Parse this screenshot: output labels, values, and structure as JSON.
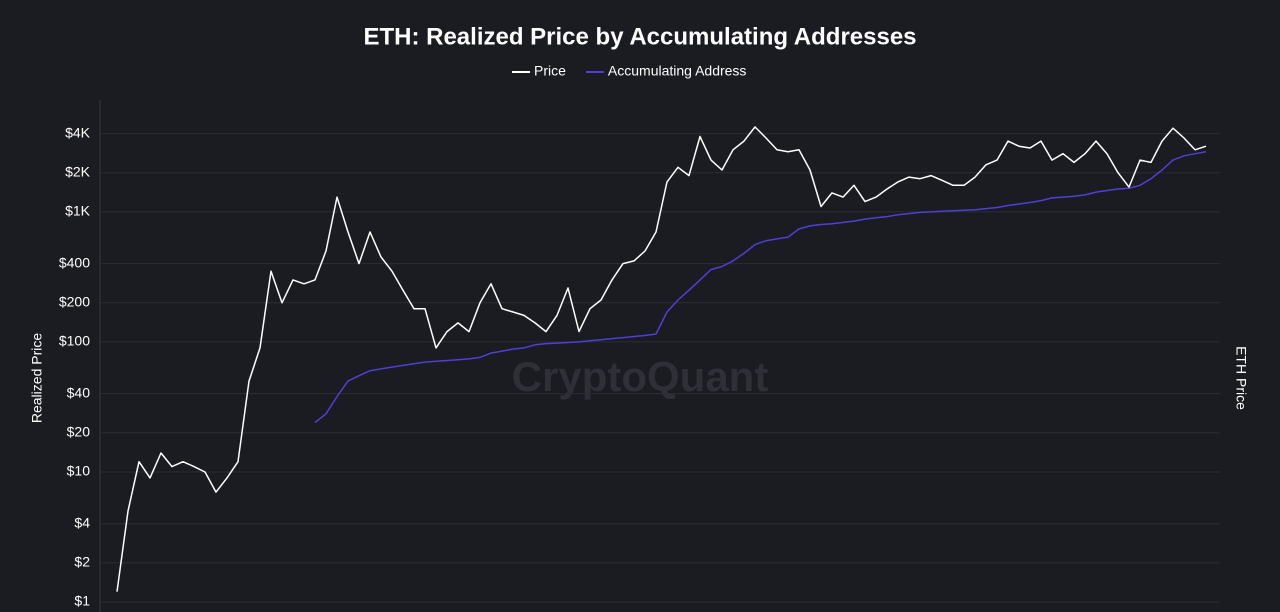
{
  "chart_data": {
    "type": "line",
    "title": "ETH: Realized Price by Accumulating Addresses",
    "y_label": "Realized Price",
    "y2_label": "ETH Price",
    "watermark": "CryptoQuant",
    "log_scale": true,
    "grid": true,
    "ylim": [
      1,
      7250
    ],
    "yticks": [
      {
        "value": 1,
        "label": "$1"
      },
      {
        "value": 2,
        "label": "$2"
      },
      {
        "value": 4,
        "label": "$4"
      },
      {
        "value": 10,
        "label": "$10"
      },
      {
        "value": 20,
        "label": "$20"
      },
      {
        "value": 40,
        "label": "$40"
      },
      {
        "value": 100,
        "label": "$100"
      },
      {
        "value": 200,
        "label": "$200"
      },
      {
        "value": 400,
        "label": "$400"
      },
      {
        "value": 1000,
        "label": "$1K"
      },
      {
        "value": 2000,
        "label": "$2K"
      },
      {
        "value": 4000,
        "label": "$4K"
      }
    ],
    "series": [
      {
        "name": "Price",
        "color": "#ffffff",
        "values": [
          1.2,
          5,
          12,
          9,
          14,
          11,
          12,
          11,
          10,
          7,
          9,
          12,
          50,
          90,
          350,
          200,
          300,
          280,
          300,
          500,
          1300,
          700,
          400,
          700,
          450,
          350,
          250,
          180,
          180,
          90,
          120,
          140,
          120,
          200,
          280,
          180,
          170,
          160,
          140,
          120,
          160,
          260,
          120,
          180,
          210,
          300,
          400,
          420,
          500,
          700,
          1700,
          2200,
          1900,
          3800,
          2500,
          2100,
          3000,
          3500,
          4500,
          3700,
          3000,
          2900,
          3000,
          2100,
          1100,
          1400,
          1300,
          1600,
          1200,
          1300,
          1500,
          1700,
          1850,
          1800,
          1900,
          1750,
          1600,
          1600,
          1850,
          2300,
          2500,
          3500,
          3200,
          3100,
          3500,
          2500,
          2800,
          2400,
          2800,
          3500,
          2800,
          2000,
          1550,
          2500,
          2400,
          3500,
          4400,
          3700,
          3000,
          3200
        ]
      },
      {
        "name": "Accumulating Address",
        "color": "#4f3fd6",
        "values": [
          null,
          null,
          null,
          null,
          null,
          null,
          null,
          null,
          null,
          null,
          null,
          null,
          null,
          null,
          null,
          null,
          null,
          null,
          24,
          28,
          38,
          50,
          55,
          60,
          62,
          64,
          66,
          68,
          70,
          71,
          72,
          73,
          74,
          76,
          82,
          85,
          88,
          90,
          95,
          97,
          98,
          99,
          100,
          102,
          104,
          106,
          108,
          110,
          112,
          115,
          170,
          210,
          250,
          300,
          360,
          380,
          420,
          480,
          560,
          600,
          620,
          640,
          740,
          780,
          800,
          810,
          830,
          850,
          880,
          900,
          920,
          950,
          970,
          990,
          1000,
          1010,
          1020,
          1030,
          1040,
          1060,
          1080,
          1120,
          1150,
          1180,
          1220,
          1280,
          1300,
          1320,
          1350,
          1420,
          1460,
          1500,
          1520,
          1600,
          1800,
          2100,
          2500,
          2700,
          2800,
          2900
        ]
      }
    ]
  }
}
